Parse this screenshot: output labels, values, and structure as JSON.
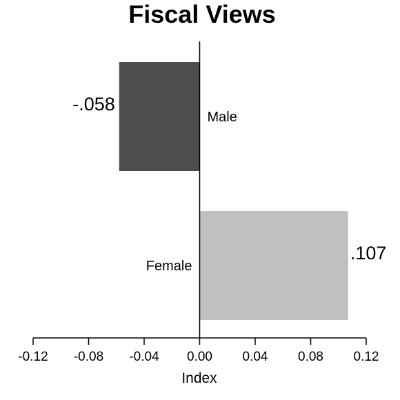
{
  "chart_data": {
    "type": "bar",
    "orientation": "horizontal",
    "title": "Fiscal Views",
    "xlabel": "Index",
    "ylabel": "",
    "xlim": [
      -0.12,
      0.12
    ],
    "xticks": [
      -0.12,
      -0.08,
      -0.04,
      0.0,
      0.04,
      0.08,
      0.12
    ],
    "xtick_labels": [
      "-0.12",
      "-0.08",
      "-0.04",
      "0.00",
      "0.04",
      "0.08",
      "0.12"
    ],
    "categories": [
      "Male",
      "Female"
    ],
    "values": [
      -0.058,
      0.107
    ],
    "value_labels": [
      "-.058",
      ".107"
    ],
    "colors": [
      "#4d4d4d",
      "#c0c0c0"
    ],
    "grid": false,
    "legend": "none"
  }
}
